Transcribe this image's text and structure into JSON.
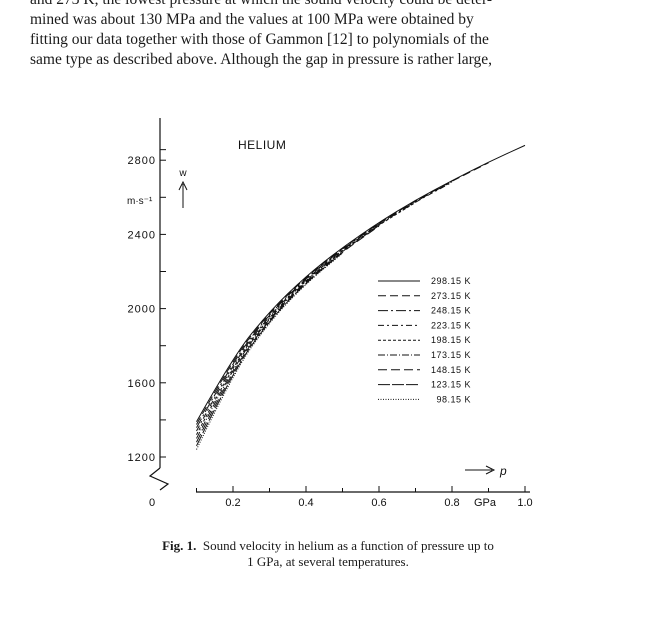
{
  "page": {
    "text_lines": [
      "and 273 K, the lowest pressure at which the sound velocity could be deter-",
      "mined was about 130 MPa and the values at 100 MPa were obtained by",
      "fitting our data together with those of Gammon [12] to polynomials of the",
      "same type as described above. Although the gap in pressure is rather large,"
    ],
    "caption": {
      "label": "Fig. 1.",
      "text_line1": "Sound velocity in helium as a function of pressure up to",
      "text_line2": "1 GPa, at several temperatures."
    }
  },
  "chart_data": {
    "type": "line",
    "title": "HELIUM",
    "xlabel": "p",
    "x_unit": "GPa",
    "ylabel": "w",
    "y_unit": "m·s⁻¹",
    "xlim": [
      0,
      1.0
    ],
    "ylim": [
      1200,
      2900
    ],
    "x_ticks": [
      "0",
      "0.2",
      "0.4",
      "0.6",
      "0.8",
      "1.0"
    ],
    "y_ticks": [
      "1200",
      "1600",
      "2000",
      "2400",
      "2800"
    ],
    "series": [
      {
        "name": "298.15 K",
        "dash": "",
        "x": [
          0.1,
          0.2,
          0.3,
          0.4,
          0.5,
          0.6,
          0.7,
          0.8,
          0.9,
          1.0
        ],
        "y": [
          1390,
          1740,
          1985,
          2175,
          2330,
          2465,
          2585,
          2690,
          2790,
          2880
        ]
      },
      {
        "name": "273.15 K",
        "dash": "8,4",
        "x": [
          0.1,
          0.2,
          0.3,
          0.4,
          0.5,
          0.6,
          0.7,
          0.8,
          0.9
        ],
        "y": [
          1375,
          1730,
          1978,
          2170,
          2326,
          2461,
          2581,
          2687,
          2786
        ]
      },
      {
        "name": "248.15 K",
        "dash": "10,3,2,3",
        "x": [
          0.1,
          0.2,
          0.3,
          0.4,
          0.5,
          0.6,
          0.7,
          0.8
        ],
        "y": [
          1358,
          1719,
          1971,
          2165,
          2322,
          2458,
          2578,
          2684
        ]
      },
      {
        "name": "223.15 K",
        "dash": "6,3,2,3",
        "x": [
          0.1,
          0.2,
          0.3,
          0.4,
          0.5,
          0.6,
          0.7,
          0.8
        ],
        "y": [
          1340,
          1708,
          1964,
          2160,
          2318,
          2454,
          2575,
          2681
        ]
      },
      {
        "name": "198.15 K",
        "dash": "3,2",
        "x": [
          0.1,
          0.2,
          0.3,
          0.4,
          0.5,
          0.6,
          0.7
        ],
        "y": [
          1320,
          1697,
          1957,
          2155,
          2314,
          2451,
          2572
        ]
      },
      {
        "name": "173.15 K",
        "dash": "7,2,1,2",
        "x": [
          0.1,
          0.2,
          0.3,
          0.4,
          0.5,
          0.6
        ],
        "y": [
          1300,
          1686,
          1950,
          2150,
          2310,
          2448
        ]
      },
      {
        "name": "148.15 K",
        "dash": "9,4",
        "x": [
          0.1,
          0.2,
          0.3,
          0.4,
          0.5,
          0.6
        ],
        "y": [
          1280,
          1674,
          1943,
          2145,
          2306,
          2445
        ]
      },
      {
        "name": "123.15 K",
        "dash": "12,2",
        "x": [
          0.1,
          0.2,
          0.3,
          0.4,
          0.5
        ],
        "y": [
          1260,
          1662,
          1936,
          2140,
          2302
        ]
      },
      {
        "name": "98.15 K",
        "dash": "1,1.5",
        "x": [
          0.1,
          0.2,
          0.3,
          0.4,
          0.5
        ],
        "y": [
          1240,
          1650,
          1929,
          2135,
          2298
        ]
      }
    ],
    "legend_position": "right",
    "grid": false
  }
}
